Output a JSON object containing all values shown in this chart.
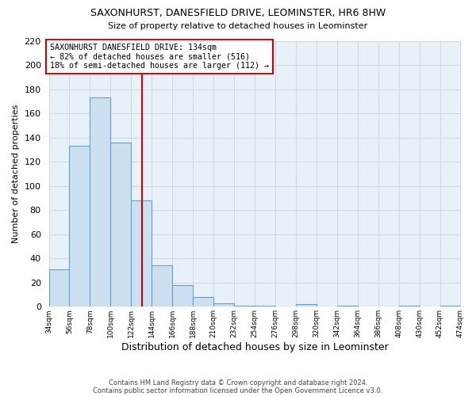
{
  "title": "SAXONHURST, DANESFIELD DRIVE, LEOMINSTER, HR6 8HW",
  "subtitle": "Size of property relative to detached houses in Leominster",
  "xlabel": "Distribution of detached houses by size in Leominster",
  "ylabel": "Number of detached properties",
  "footer_line1": "Contains HM Land Registry data © Crown copyright and database right 2024.",
  "footer_line2": "Contains public sector information licensed under the Open Government Licence v3.0.",
  "bin_edges": [
    34,
    56,
    78,
    100,
    122,
    144,
    166,
    188,
    210,
    232,
    254,
    276,
    298,
    320,
    342,
    364,
    386,
    408,
    430,
    452,
    474
  ],
  "bin_counts": [
    31,
    133,
    173,
    136,
    88,
    34,
    18,
    8,
    3,
    1,
    1,
    0,
    2,
    0,
    1,
    0,
    0,
    1,
    0,
    1
  ],
  "bar_facecolor": "#cce0f0",
  "bar_edgecolor": "#5ba3d0",
  "vline_x": 134,
  "vline_color": "#cc0000",
  "annotation_text": "SAXONHURST DANESFIELD DRIVE: 134sqm\n← 82% of detached houses are smaller (516)\n18% of semi-detached houses are larger (112) →",
  "annotation_box_edgecolor": "#cc0000",
  "ylim": [
    0,
    220
  ],
  "yticks": [
    0,
    20,
    40,
    60,
    80,
    100,
    120,
    140,
    160,
    180,
    200,
    220
  ],
  "grid_color": "#c8d4e0",
  "background_color": "#e8f0f8",
  "tick_labels": [
    "34sqm",
    "56sqm",
    "78sqm",
    "100sqm",
    "122sqm",
    "144sqm",
    "166sqm",
    "188sqm",
    "210sqm",
    "232sqm",
    "254sqm",
    "276sqm",
    "298sqm",
    "320sqm",
    "342sqm",
    "364sqm",
    "386sqm",
    "408sqm",
    "430sqm",
    "452sqm",
    "474sqm"
  ]
}
